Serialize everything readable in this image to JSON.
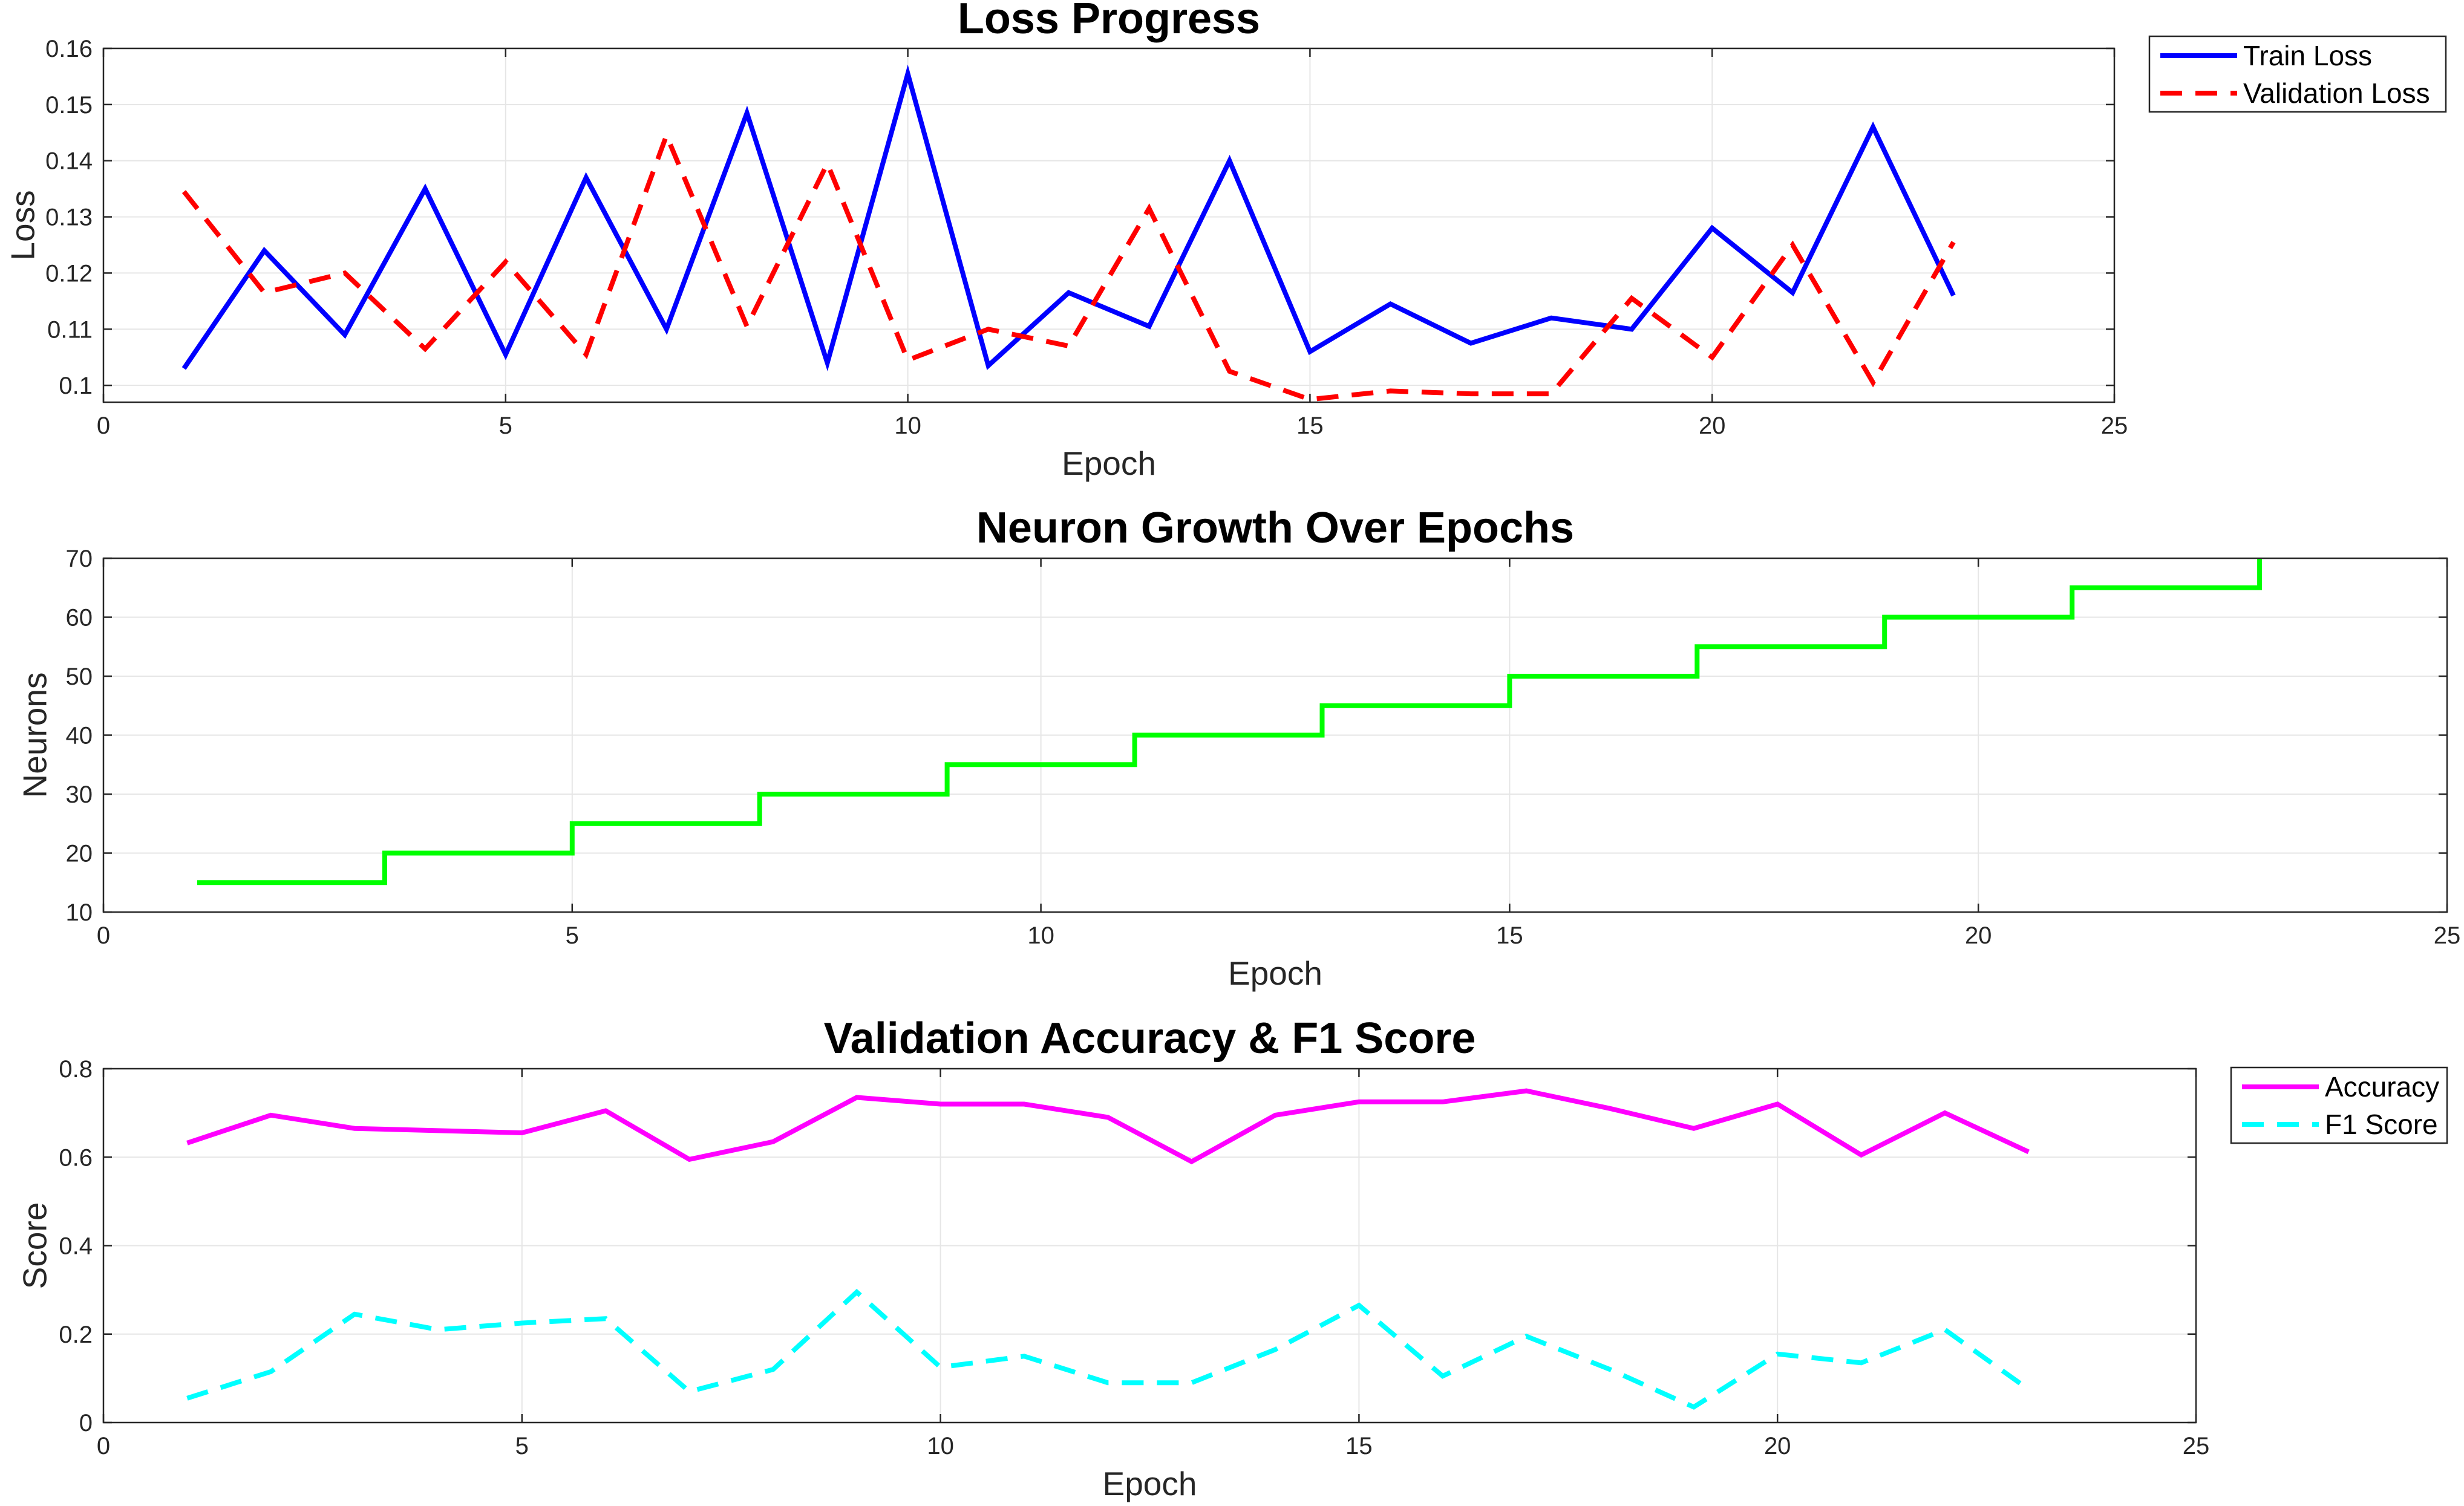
{
  "colors": {
    "train_loss": "#0000ff",
    "validation_loss": "#ff0000",
    "neurons": "#00ff00",
    "accuracy": "#ff00ff",
    "f1_score": "#00ffff",
    "grid": "#e6e6e6",
    "axes": "#262626"
  },
  "chart_data": [
    {
      "type": "line",
      "title": "Loss Progress",
      "xlabel": "Epoch",
      "ylabel": "Loss",
      "xlim": [
        0,
        25
      ],
      "ylim": [
        0.097,
        0.16
      ],
      "xticks": [
        0,
        5,
        10,
        15,
        20,
        25
      ],
      "yticks": [
        0.1,
        0.11,
        0.12,
        0.13,
        0.14,
        0.15,
        0.16
      ],
      "grid": true,
      "legend_position": "outside-top-right",
      "x": [
        1,
        2,
        3,
        4,
        5,
        6,
        7,
        8,
        9,
        10,
        11,
        12,
        13,
        14,
        15,
        16,
        17,
        18,
        19,
        20,
        21,
        22,
        23
      ],
      "series": [
        {
          "name": "Train Loss",
          "style": "solid",
          "color": "#0000ff",
          "values": [
            0.103,
            0.124,
            0.109,
            0.135,
            0.1055,
            0.137,
            0.11,
            0.1485,
            0.104,
            0.1555,
            0.1035,
            0.1165,
            0.1105,
            0.14,
            0.106,
            0.1145,
            0.1075,
            0.112,
            0.11,
            0.128,
            0.1165,
            0.146,
            0.116
          ]
        },
        {
          "name": "Validation Loss",
          "style": "dashed",
          "color": "#ff0000",
          "values": [
            0.1345,
            0.1165,
            0.12,
            0.1065,
            0.122,
            0.1055,
            0.1445,
            0.1105,
            0.1395,
            0.1045,
            0.11,
            0.107,
            0.1315,
            0.1025,
            0.0975,
            0.099,
            0.0985,
            0.0985,
            0.1155,
            0.105,
            0.125,
            0.1005,
            0.1255
          ]
        }
      ]
    },
    {
      "type": "line",
      "title": "Neuron Growth Over Epochs",
      "xlabel": "Epoch",
      "ylabel": "Neurons",
      "xlim": [
        0,
        25
      ],
      "ylim": [
        10,
        70
      ],
      "xticks": [
        0,
        5,
        10,
        15,
        20,
        25
      ],
      "yticks": [
        10,
        20,
        30,
        40,
        50,
        60,
        70
      ],
      "grid": true,
      "step": true,
      "x": [
        1,
        2,
        3,
        4,
        5,
        6,
        7,
        8,
        9,
        10,
        11,
        12,
        13,
        14,
        15,
        16,
        17,
        18,
        19,
        20,
        21,
        22,
        23
      ],
      "series": [
        {
          "style": "solid",
          "color": "#00ff00",
          "values": [
            15,
            15,
            20,
            20,
            25,
            25,
            30,
            30,
            35,
            35,
            40,
            40,
            45,
            45,
            50,
            50,
            55,
            55,
            60,
            60,
            65,
            65,
            70
          ]
        }
      ]
    },
    {
      "type": "line",
      "title": "Validation Accuracy & F1 Score",
      "xlabel": "Epoch",
      "ylabel": "Score",
      "xlim": [
        0,
        25
      ],
      "ylim": [
        0,
        0.8
      ],
      "xticks": [
        0,
        5,
        10,
        15,
        20,
        25
      ],
      "yticks": [
        0,
        0.2,
        0.4,
        0.6,
        0.8
      ],
      "grid": true,
      "legend_position": "outside-top-right",
      "x": [
        1,
        2,
        3,
        4,
        5,
        6,
        7,
        8,
        9,
        10,
        11,
        12,
        13,
        14,
        15,
        16,
        17,
        18,
        19,
        20,
        21,
        22,
        23
      ],
      "series": [
        {
          "name": "Accuracy",
          "style": "solid",
          "color": "#ff00ff",
          "values": [
            0.632,
            0.695,
            0.665,
            0.66,
            0.655,
            0.705,
            0.595,
            0.635,
            0.735,
            0.72,
            0.72,
            0.69,
            0.59,
            0.695,
            0.725,
            0.725,
            0.75,
            0.71,
            0.665,
            0.72,
            0.605,
            0.7,
            0.612
          ]
        },
        {
          "name": "F1 Score",
          "style": "dashed",
          "color": "#00ffff",
          "values": [
            0.055,
            0.115,
            0.245,
            0.21,
            0.225,
            0.235,
            0.07,
            0.12,
            0.295,
            0.125,
            0.15,
            0.09,
            0.09,
            0.165,
            0.265,
            0.105,
            0.195,
            0.12,
            0.035,
            0.155,
            0.135,
            0.21,
            0.075
          ]
        }
      ]
    }
  ]
}
